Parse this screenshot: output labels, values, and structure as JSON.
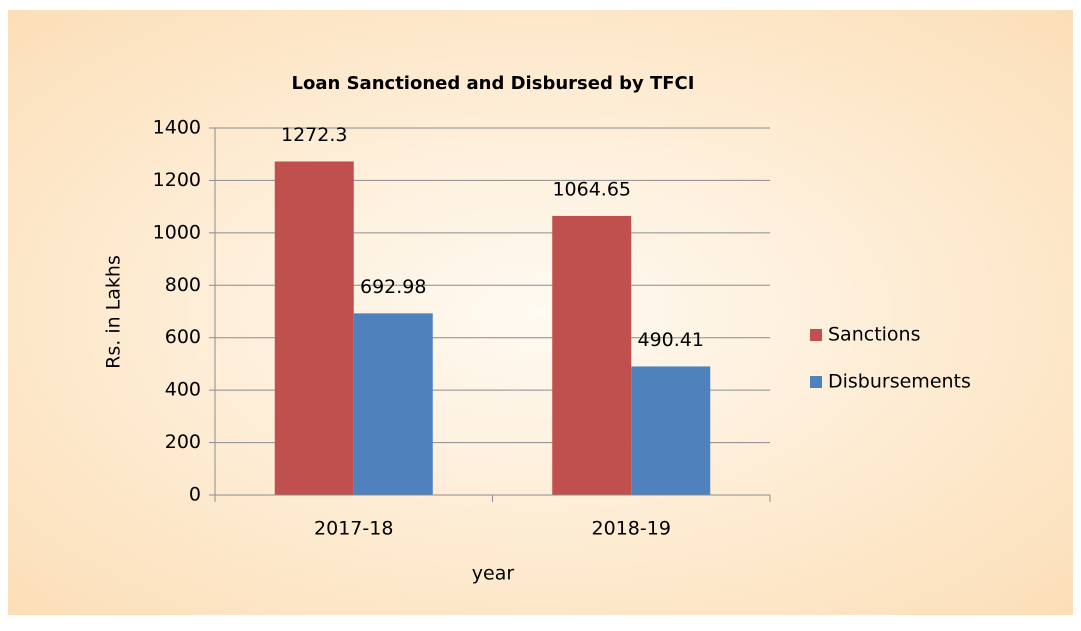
{
  "chart_data": {
    "type": "bar",
    "title": "Loan Sanctioned and Disbursed by TFCI",
    "x_label": "year",
    "y_label": "Rs. in Lakhs",
    "categories": [
      "2017-18",
      "2018-19"
    ],
    "series": [
      {
        "name": "Sanctions",
        "color": "#c0504d",
        "values": [
          1272.3,
          1064.65
        ]
      },
      {
        "name": "Disbursements",
        "color": "#4f81bd",
        "values": [
          692.98,
          490.41
        ]
      }
    ],
    "ylim": [
      0,
      1400
    ],
    "yticks": [
      0,
      200,
      400,
      600,
      800,
      1000,
      1200,
      1400
    ],
    "grid": true,
    "legend": "right"
  }
}
